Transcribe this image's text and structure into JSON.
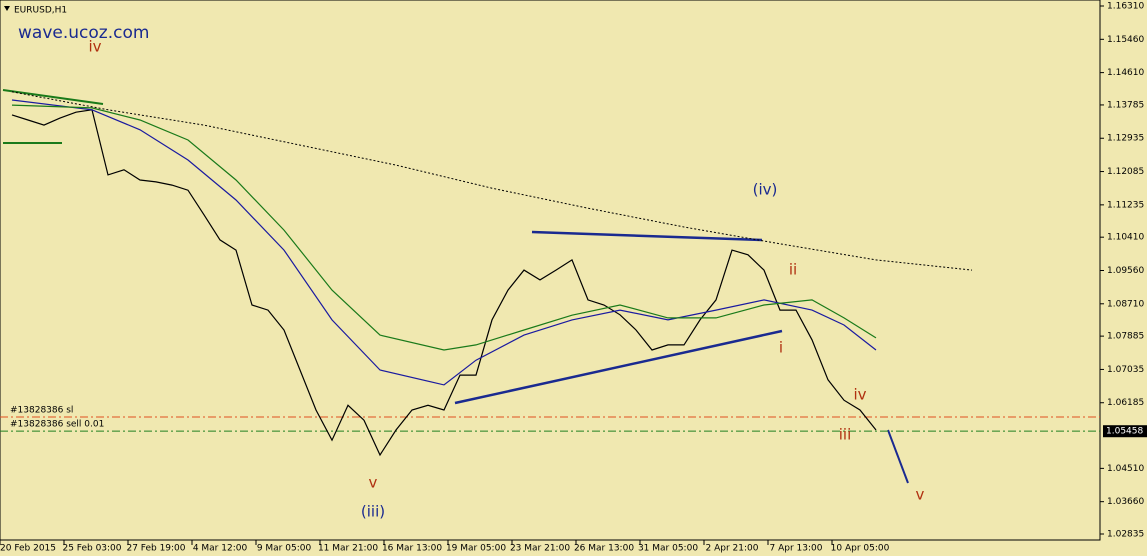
{
  "chart_data": {
    "type": "line",
    "title": "EURUSD,H1",
    "watermark": "wave.ucoz.com",
    "xlim": [
      -0.75,
      68
    ],
    "ylim": [
      1.02835,
      1.1631
    ],
    "xticks": [
      {
        "value": 1,
        "label": "20 Feb 2015"
      },
      {
        "value": 5,
        "label": "25 Feb 03:00"
      },
      {
        "value": 9,
        "label": "27 Feb 19:00"
      },
      {
        "value": 13,
        "label": "4 Mar 12:00"
      },
      {
        "value": 17,
        "label": "9 Mar 05:00"
      },
      {
        "value": 21,
        "label": "11 Mar 21:00"
      },
      {
        "value": 25,
        "label": "16 Mar 13:00"
      },
      {
        "value": 29,
        "label": "19 Mar 05:00"
      },
      {
        "value": 33,
        "label": "23 Mar 21:00"
      },
      {
        "value": 37,
        "label": "26 Mar 13:00"
      },
      {
        "value": 41,
        "label": "31 Mar 05:00"
      },
      {
        "value": 45,
        "label": "2 Apr 21:00"
      },
      {
        "value": 49,
        "label": "7 Apr 13:00"
      },
      {
        "value": 53,
        "label": "10 Apr 05:00"
      }
    ],
    "yticks": [
      {
        "value": 1.1631,
        "label": "1.16310"
      },
      {
        "value": 1.1546,
        "label": "1.15460"
      },
      {
        "value": 1.1461,
        "label": "1.14610"
      },
      1.13785,
      1.12935,
      1.12085,
      1.11235,
      {
        "value": 1.1041,
        "label": "1.10410"
      },
      {
        "value": 1.0956,
        "label": "1.09560"
      },
      {
        "value": 1.0871,
        "label": "1.08710"
      },
      1.07885,
      1.07035,
      1.06185,
      {
        "value": 1.0451,
        "label": "1.04510"
      },
      {
        "value": 1.0366,
        "label": "1.03660"
      },
      1.02835
    ],
    "series": [
      {
        "color": "#000000",
        "style": "solid",
        "x": [
          0,
          1,
          2,
          3,
          4,
          5,
          6,
          7,
          8,
          9,
          10,
          11,
          12,
          13,
          14,
          15,
          16,
          17,
          18,
          19,
          20,
          21,
          22,
          23,
          24,
          25,
          26,
          27,
          28,
          29,
          30,
          31,
          32,
          33,
          34,
          35,
          36,
          37,
          38,
          39,
          40,
          41,
          42,
          43,
          44,
          45,
          46,
          47,
          48,
          49,
          50,
          51,
          52,
          53,
          54
        ],
        "values": [
          1.1353,
          1.134,
          1.1327,
          1.1345,
          1.136,
          1.1366,
          1.12,
          1.1213,
          1.1187,
          1.1182,
          1.1174,
          1.1161,
          1.1098,
          1.1034,
          1.1008,
          1.0868,
          1.0855,
          1.0804,
          1.0702,
          1.06,
          1.0523,
          1.0612,
          1.0574,
          1.0485,
          1.0549,
          1.06,
          1.0612,
          1.06,
          1.0689,
          1.0689,
          1.083,
          1.0906,
          1.0957,
          1.0932,
          1.0957,
          1.0983,
          1.0881,
          1.0868,
          1.0843,
          1.0804,
          1.0753,
          1.0766,
          1.0766,
          1.083,
          1.0881,
          1.1008,
          1.0996,
          1.0957,
          1.0855,
          1.0855,
          1.0779,
          1.0677,
          1.0625,
          1.06,
          1.0549
        ]
      },
      {
        "color": "#1a1aa0",
        "style": "solid",
        "x": [
          0,
          5,
          8,
          11,
          14,
          17,
          20,
          23,
          27,
          29,
          32,
          35,
          38,
          41,
          44,
          47,
          50,
          52,
          54
        ],
        "values": [
          1.1391,
          1.1366,
          1.1315,
          1.1238,
          1.1136,
          1.1008,
          1.083,
          1.0702,
          1.0664,
          1.0727,
          1.0791,
          1.083,
          1.0855,
          1.083,
          1.0855,
          1.0881,
          1.0855,
          1.0817,
          1.0753
        ]
      },
      {
        "color": "#1a7a1a",
        "style": "solid",
        "x": [
          0,
          5,
          8,
          11,
          14,
          17,
          20,
          23,
          27,
          29,
          32,
          35,
          38,
          41,
          44,
          47,
          50,
          52,
          54
        ],
        "values": [
          1.1378,
          1.1371,
          1.134,
          1.1289,
          1.1187,
          1.1059,
          1.0906,
          1.0791,
          1.0753,
          1.0766,
          1.0804,
          1.0842,
          1.0868,
          1.0835,
          1.0835,
          1.0868,
          1.0881,
          1.0835,
          1.0784
        ]
      },
      {
        "color": "#000000",
        "style": "dotted",
        "x": [
          0,
          6,
          12,
          18,
          24,
          30,
          36,
          42,
          48,
          54,
          60
        ],
        "values": [
          1.1412,
          1.1366,
          1.1327,
          1.1276,
          1.1225,
          1.1166,
          1.1115,
          1.1067,
          1.1024,
          1.0983,
          1.0957
        ]
      }
    ],
    "orders": [
      {
        "label": "#13828386 sl",
        "value": 1.0582,
        "color": "#e05020"
      },
      {
        "label": "#13828386 sell 0.01",
        "value": 1.0546,
        "color": "#208020"
      }
    ],
    "last_price": 1.05458,
    "annotations": [
      {
        "text": "iv",
        "color": "#b03010"
      },
      {
        "text": "(iv)",
        "color": "#1a2a90"
      },
      {
        "text": "ii",
        "color": "#b03010"
      },
      {
        "text": "i",
        "color": "#b03010"
      },
      {
        "text": "iv",
        "color": "#b03010"
      },
      {
        "text": "iii",
        "color": "#b03010"
      },
      {
        "text": "v",
        "color": "#b03010"
      },
      {
        "text": "v",
        "color": "#b03010"
      },
      {
        "text": "(iii)",
        "color": "#1a2a90"
      }
    ]
  }
}
